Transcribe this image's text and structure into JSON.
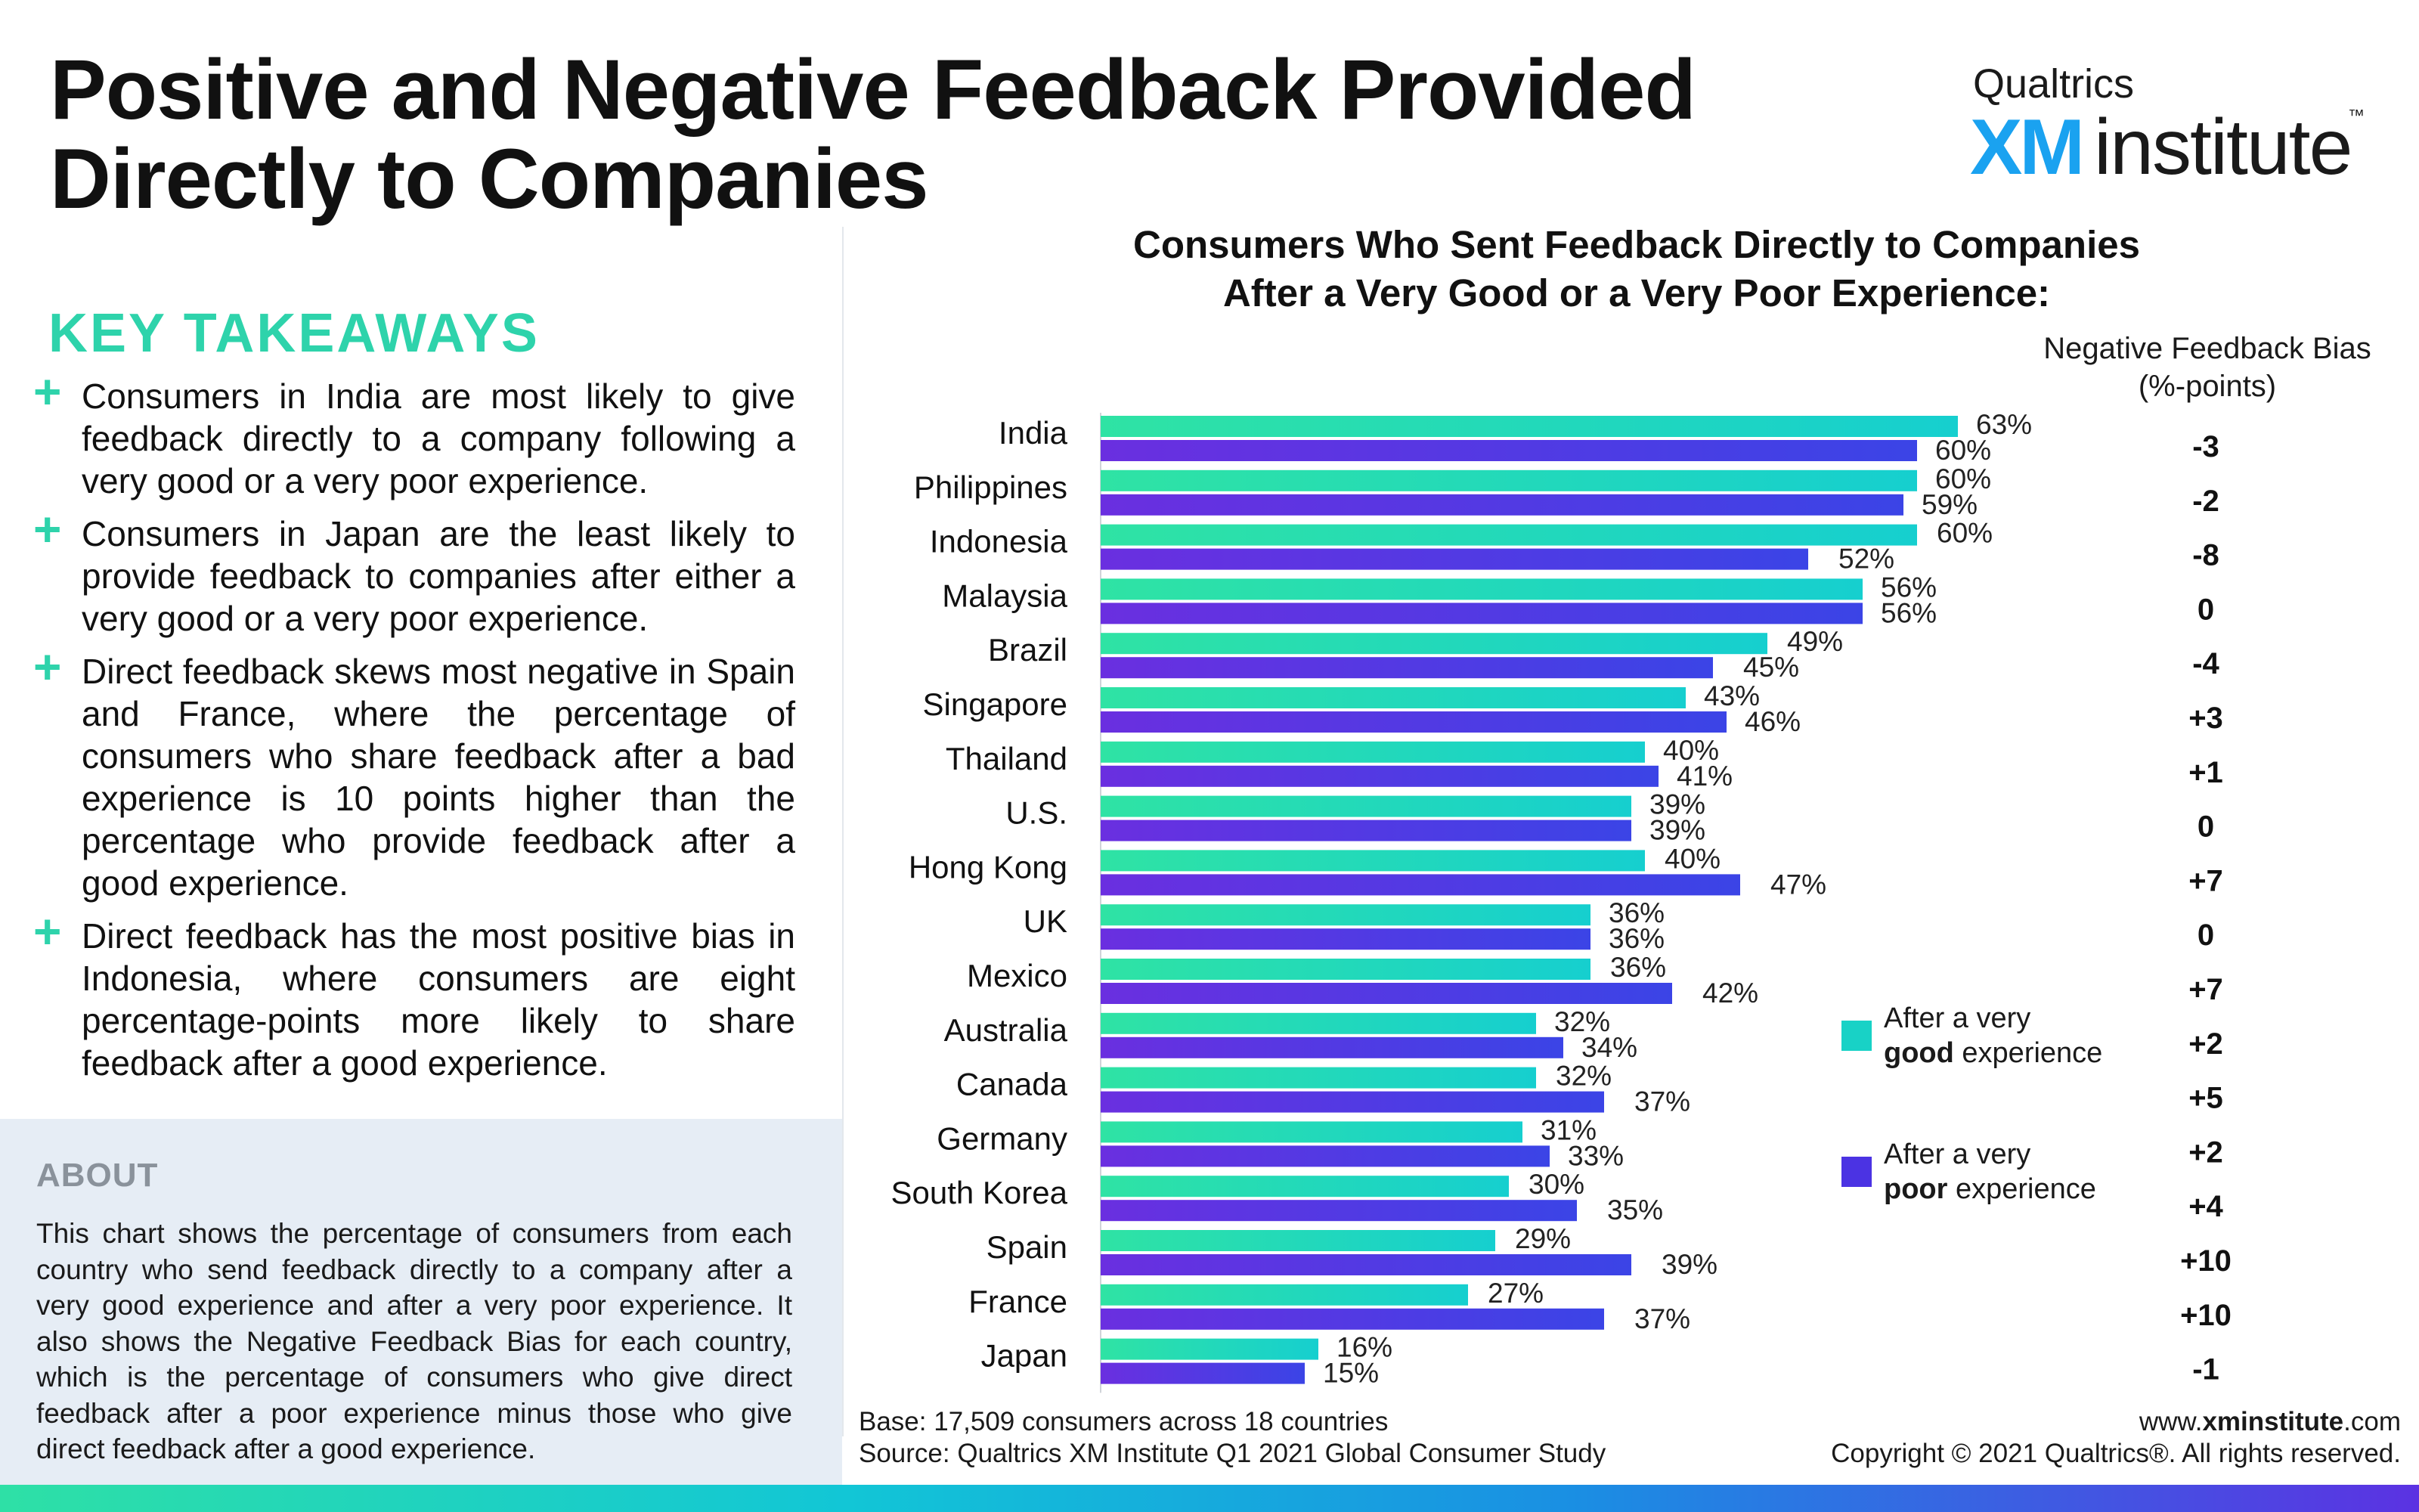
{
  "title": {
    "line1": "Positive and Negative Feedback Provided",
    "line2": "Directly to Companies"
  },
  "logo": {
    "brand": "Qualtrics",
    "xm": "XM",
    "institute": "institute",
    "tm": "™"
  },
  "takeaways": {
    "heading": "KEY TAKEAWAYS",
    "bullet_icon": "plus-icon",
    "items": [
      "Consumers in India are most likely to give feedback directly to a company following a very good or a very poor experience.",
      "Consumers in Japan are the least likely to provide feedback to companies after either a very good or a very poor experience.",
      "Direct feedback skews most negative in Spain and France, where the percentage of consumers who share feedback after a bad experience is 10 points higher than the percentage who provide feedback after a good experience.",
      "Direct feedback has the most positive bias in Indonesia, where consumers are eight percentage-points more likely to share feedback after a good experience."
    ]
  },
  "about": {
    "heading": "ABOUT",
    "text": "This chart shows the percentage of consumers from each country who send feedback directly to a company after a very good experience and after a very poor experience. It also shows the Negative Feedback Bias for each country, which is the percentage of consumers who give direct feedback after a poor experience minus those who give direct feedback after a good experience."
  },
  "chart_data": {
    "type": "bar",
    "orientation": "horizontal",
    "title": "Consumers Who Sent Feedback Directly to Companies After a Very Good or a Very Poor Experience:",
    "title_line1": "Consumers Who Sent Feedback Directly to Companies",
    "title_line2": "After a Very Good or a Very Poor Experience:",
    "categories": [
      "India",
      "Philippines",
      "Indonesia",
      "Malaysia",
      "Brazil",
      "Singapore",
      "Thailand",
      "U.S.",
      "Hong Kong",
      "UK",
      "Mexico",
      "Australia",
      "Canada",
      "Germany",
      "South Korea",
      "Spain",
      "France",
      "Japan"
    ],
    "series": [
      {
        "name": "After a very good experience",
        "color": "#24dfb0",
        "values": [
          63,
          60,
          60,
          56,
          49,
          43,
          40,
          39,
          40,
          36,
          36,
          32,
          32,
          31,
          30,
          29,
          27,
          16
        ]
      },
      {
        "name": "After a very poor experience",
        "color": "#4b33e3",
        "values": [
          60,
          59,
          52,
          56,
          45,
          46,
          41,
          39,
          47,
          36,
          42,
          34,
          37,
          33,
          35,
          39,
          37,
          15
        ]
      }
    ],
    "value_suffix": "%",
    "xlim": [
      0,
      100
    ],
    "bias_header_line1": "Negative Feedback Bias",
    "bias_header_line2": "(%-points)",
    "bias": [
      "-3",
      "-2",
      "-8",
      "0",
      "-4",
      "+3",
      "+1",
      "0",
      "+7",
      "0",
      "+7",
      "+2",
      "+5",
      "+2",
      "+4",
      "+10",
      "+10",
      "-1"
    ],
    "legend": [
      {
        "line1": "After a very",
        "bold": "good",
        "rest": " experience",
        "color": "#18d2c6"
      },
      {
        "line1": "After a very",
        "bold": "poor",
        "rest": " experience",
        "color": "#4b33e3"
      }
    ],
    "grid": false,
    "legend_position": "right"
  },
  "footer": {
    "base": "Base: 17,509 consumers across 18 countries",
    "source": "Source: Qualtrics XM Institute Q1 2021 Global Consumer Study",
    "url_prefix": "www.",
    "url_bold": "xminstitute",
    "url_suffix": ".com",
    "copyright": "Copyright © 2021 Qualtrics®. All rights reserved."
  }
}
